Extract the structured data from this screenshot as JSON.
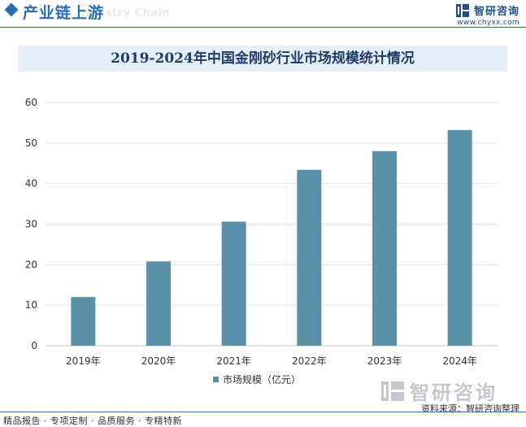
{
  "header": {
    "section_title": "产业链上游",
    "section_title_en": "Industry Chain",
    "brand_name": "智研咨询",
    "brand_url": "www.chyxx.com"
  },
  "chart_data": {
    "type": "bar",
    "title": "2019-2024年中国金刚砂行业市场规模统计情况",
    "categories": [
      "2019年",
      "2020年",
      "2021年",
      "2022年",
      "2023年",
      "2024年"
    ],
    "series": [
      {
        "name": "市场规模（亿元）",
        "values": [
          12.0,
          20.8,
          30.6,
          43.4,
          48.0,
          53.2
        ]
      }
    ],
    "xlabel": "",
    "ylabel": "",
    "ylim": [
      0,
      60
    ],
    "yticks": [
      0,
      10,
      20,
      30,
      40,
      50,
      60
    ],
    "grid": true,
    "legend_position": "bottom",
    "bar_color": "#5a91a9"
  },
  "watermark": {
    "text": "智研咨询"
  },
  "source": "资料来源：智研咨询整理",
  "footer": {
    "services": "精品报告 · 专项定制 · 品质服务 · 专精特新"
  }
}
